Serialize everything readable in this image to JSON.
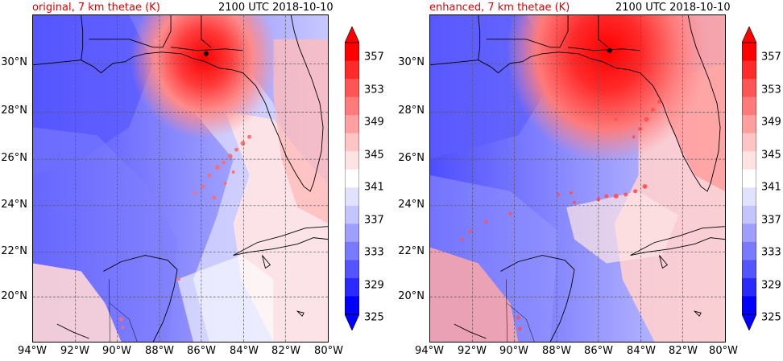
{
  "panels": [
    {
      "title_left": "original, 7 km thetae (K)",
      "title_right": "2100 UTC 2018-10-10"
    },
    {
      "title_left": "enhanced, 7 km thetae (K)",
      "title_right": "2100 UTC 2018-10-10"
    }
  ],
  "lat_labels": [
    "30°N",
    "28°N",
    "26°N",
    "24°N",
    "22°N",
    "20°N"
  ],
  "lon_labels": [
    "94°W",
    "92°W",
    "90°W",
    "88°W",
    "86°W",
    "84°W",
    "82°W",
    "80°W"
  ],
  "colorbar": {
    "labels": [
      "357",
      "353",
      "349",
      "345",
      "341",
      "337",
      "333",
      "329",
      "325"
    ],
    "colors": [
      "#ff0000",
      "#ff2a2a",
      "#ff5555",
      "#ff7a7a",
      "#ff9f9f",
      "#ffc4c4",
      "#ffe2e2",
      "#ffffff",
      "#e2e2ff",
      "#c4c4ff",
      "#9f9fff",
      "#7a7aff",
      "#5555ff",
      "#2a2aff",
      "#0000ff"
    ],
    "extend_max_color": "#ff0000",
    "extend_min_color": "#0000ff"
  }
}
